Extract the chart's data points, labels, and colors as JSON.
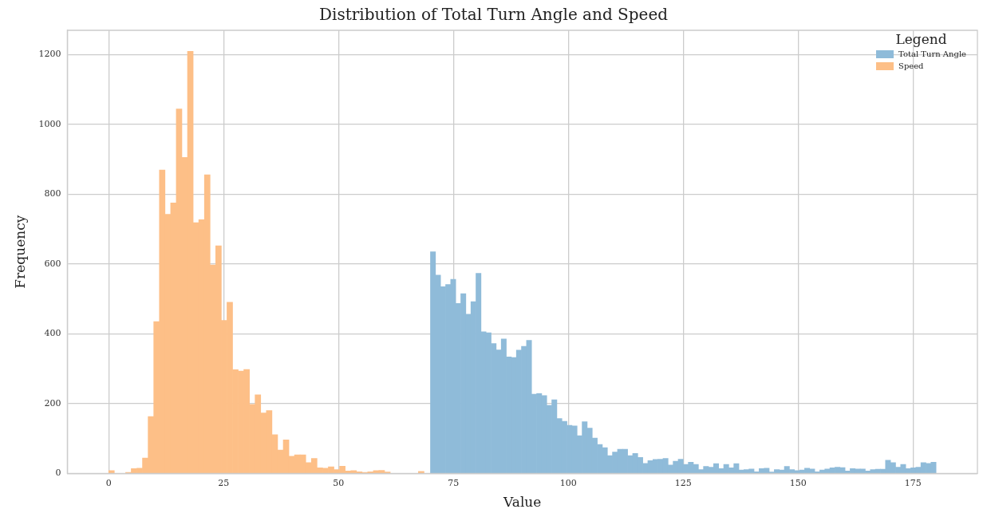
{
  "chart_data": {
    "type": "bar",
    "title": "Distribution of Total Turn Angle and Speed",
    "xlabel": "Value",
    "ylabel": "Frequency",
    "legend_title": "Legend",
    "series": [
      {
        "name": "Total Turn Angle",
        "color": "#8fbbd9",
        "x": [
          70.55,
          71.65,
          72.75,
          73.85,
          74.95,
          76.05,
          77.15,
          78.25,
          79.35,
          80.45,
          81.55,
          82.65,
          83.75,
          84.85,
          85.95,
          87.05,
          88.15,
          89.25,
          90.35,
          91.45,
          92.55,
          93.65,
          94.75,
          95.85,
          96.95,
          98.05,
          99.15,
          100.25,
          101.35,
          102.45,
          103.55,
          104.65,
          105.75,
          106.85,
          107.95,
          109.05,
          110.15,
          111.25,
          112.35,
          113.45,
          114.55,
          115.65,
          116.75,
          117.85,
          118.95,
          120.05,
          121.15,
          122.25,
          123.35,
          124.45,
          125.55,
          126.65,
          127.75,
          128.85,
          129.95,
          131.05,
          132.15,
          133.25,
          134.35,
          135.45,
          136.55,
          137.65,
          138.75,
          139.85,
          140.95,
          142.05,
          143.15,
          144.25,
          145.35,
          146.45,
          147.55,
          148.65,
          149.75,
          150.85,
          151.95,
          153.05,
          154.15,
          155.25,
          156.35,
          157.45,
          158.55,
          159.65,
          160.75,
          161.85,
          162.95,
          164.05,
          165.15,
          166.25,
          167.35,
          168.45,
          169.55,
          170.65,
          171.75,
          172.85,
          173.95,
          175.05,
          176.15,
          177.25,
          178.35,
          179.45
        ],
        "values": [
          635,
          568,
          535,
          541,
          556,
          487,
          515,
          456,
          492,
          573,
          406,
          403,
          372,
          354,
          385,
          334,
          332,
          353,
          364,
          381,
          227,
          229,
          223,
          195,
          211,
          157,
          149,
          138,
          136,
          108,
          148,
          130,
          101,
          83,
          74,
          51,
          61,
          69,
          69,
          51,
          57,
          46,
          29,
          37,
          40,
          41,
          43,
          24,
          35,
          41,
          26,
          32,
          26,
          11,
          20,
          18,
          28,
          14,
          26,
          16,
          28,
          10,
          11,
          13,
          5,
          14,
          15,
          4,
          11,
          10,
          20,
          11,
          8,
          10,
          15,
          13,
          5,
          10,
          13,
          16,
          18,
          17,
          7,
          14,
          13,
          13,
          7,
          11,
          12,
          12,
          38,
          31,
          18,
          26,
          14,
          16,
          18,
          31,
          29,
          32
        ]
      },
      {
        "name": "Speed",
        "color": "#fdbf87",
        "x": [
          0.61,
          1.84,
          3.06,
          4.29,
          5.51,
          6.74,
          7.96,
          9.19,
          10.41,
          11.64,
          12.86,
          14.09,
          15.31,
          16.54,
          17.76,
          18.99,
          20.21,
          21.44,
          22.66,
          23.89,
          25.11,
          26.34,
          27.56,
          28.79,
          30.01,
          31.24,
          32.46,
          33.69,
          34.91,
          36.14,
          37.36,
          38.59,
          39.81,
          41.04,
          42.26,
          43.49,
          44.71,
          45.94,
          47.16,
          48.39,
          49.61,
          50.84,
          52.06,
          53.29,
          54.51,
          55.74,
          56.96,
          58.19,
          59.41,
          60.64,
          61.86,
          63.09,
          64.31,
          65.54,
          66.76,
          67.99
        ],
        "values": [
          8,
          0,
          0,
          3,
          14,
          15,
          44,
          163,
          435,
          869,
          742,
          775,
          1044,
          905,
          1209,
          718,
          727,
          855,
          597,
          652,
          438,
          490,
          297,
          293,
          298,
          198,
          225,
          173,
          180,
          111,
          67,
          96,
          49,
          53,
          53,
          31,
          43,
          16,
          15,
          19,
          11,
          21,
          7,
          8,
          5,
          3,
          5,
          8,
          9,
          4,
          0,
          0,
          0,
          0,
          0,
          6
        ]
      }
    ],
    "xlim": [
      -9,
      189
    ],
    "xticks": [
      0,
      25,
      50,
      75,
      100,
      125,
      150,
      175
    ],
    "ylim": [
      0,
      1269
    ],
    "yticks": [
      0,
      200,
      400,
      600,
      800,
      1000,
      1200
    ],
    "grid": true,
    "legend": "top right"
  }
}
